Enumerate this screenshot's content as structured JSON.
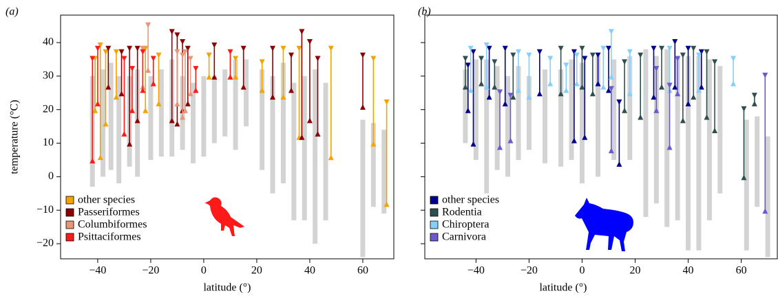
{
  "chart_data": [
    {
      "type": "range",
      "title": "(a)",
      "xlabel": "latitude (°)",
      "ylabel": "temperature (°C)",
      "xlim": [
        -54,
        71.7
      ],
      "ylim": [
        -24.5,
        48.2
      ],
      "xticks": [
        {
          "value": -40,
          "label": "−40"
        },
        {
          "value": -20,
          "label": "−20"
        },
        0,
        20,
        40,
        60
      ],
      "yticks": [
        {
          "value": -20,
          "label": "−20"
        },
        {
          "value": -10,
          "label": "−10"
        },
        0,
        10,
        20,
        30,
        40
      ],
      "show_ytick_labels": true,
      "thermal_ranges": {
        "color": "#d3d3d3",
        "x": [
          -42,
          -38,
          -35,
          -32,
          -28,
          -25,
          -20,
          -16,
          -12,
          -8,
          -4,
          0,
          4,
          8,
          12,
          16,
          22,
          26,
          30,
          34,
          38,
          42,
          46,
          60,
          64,
          68
        ],
        "low": [
          -3,
          0,
          2,
          -2,
          3,
          0,
          5,
          6,
          6,
          8,
          4,
          6,
          10,
          12,
          8,
          15,
          2,
          -5,
          -2,
          -13,
          -13,
          -20,
          -13,
          -24,
          -9,
          -11
        ],
        "high": [
          30,
          32,
          34,
          30,
          30,
          32,
          30,
          32,
          35,
          30,
          28,
          30,
          30,
          32,
          35,
          35,
          32,
          30,
          34,
          28,
          30,
          32,
          28,
          17,
          16,
          14
        ]
      },
      "series": [
        {
          "name": "other species",
          "color": "#f4a300",
          "x": [
            -41,
            -39,
            -37,
            -33,
            -22,
            -17,
            2,
            12,
            22,
            30,
            36,
            48,
            64,
            69
          ],
          "low": [
            20,
            6,
            16,
            24,
            20,
            22,
            30,
            30,
            26,
            24,
            12,
            6,
            10,
            -8
          ],
          "high": [
            35,
            39,
            37,
            37,
            38,
            36,
            36,
            35,
            34,
            38,
            38,
            38,
            35,
            22
          ]
        },
        {
          "name": "Passeriformes",
          "color": "#8b0000",
          "x": [
            -36,
            -31,
            -28,
            -25,
            -12,
            -10,
            -8,
            -6,
            4,
            15,
            26,
            33,
            37,
            40,
            43,
            60
          ],
          "low": [
            27,
            25,
            10,
            17,
            17,
            16,
            20,
            22,
            30,
            27,
            24,
            26,
            12,
            17,
            13,
            21
          ],
          "high": [
            38,
            37,
            38,
            38,
            43,
            42,
            40,
            38,
            39,
            38,
            38,
            36,
            43,
            40,
            35,
            36
          ]
        },
        {
          "name": "Columbiformes",
          "color": "#e8967a",
          "x": [
            -23,
            -21,
            -10,
            -8,
            -7,
            -5
          ],
          "low": [
            27,
            32,
            22,
            18,
            20,
            25
          ],
          "high": [
            38,
            45,
            37,
            36,
            37,
            35
          ]
        },
        {
          "name": "Psittaciformes",
          "color": "#ff1a1a",
          "x": [
            -42,
            -40,
            -30,
            -27,
            -23,
            -19,
            -3,
            10
          ],
          "low": [
            5,
            22,
            13,
            20,
            26,
            28,
            26,
            30
          ],
          "high": [
            35,
            38,
            35,
            32,
            37,
            35,
            32,
            37
          ]
        }
      ]
    },
    {
      "type": "range",
      "title": "(b)",
      "xlabel": "latitude (°)",
      "xlim": [
        -59.3,
        73.6
      ],
      "ylim": [
        -24.5,
        48.2
      ],
      "xticks": [
        {
          "value": -40,
          "label": "−40"
        },
        {
          "value": -20,
          "label": "−20"
        },
        0,
        20,
        40,
        60
      ],
      "yticks": [
        -20,
        -10,
        0,
        10,
        20,
        30,
        40
      ],
      "show_ytick_labels": false,
      "thermal_ranges": {
        "color": "#d3d3d3",
        "x": [
          -44,
          -40,
          -36,
          -32,
          -28,
          -24,
          -20,
          -14,
          -8,
          -4,
          0,
          6,
          12,
          18,
          24,
          28,
          32,
          36,
          40,
          44,
          48,
          52,
          62,
          66,
          70
        ],
        "low": [
          10,
          5,
          -5,
          2,
          0,
          5,
          8,
          4,
          3,
          5,
          -2,
          0,
          5,
          5,
          -12,
          -8,
          -15,
          -13,
          -22,
          -22,
          -13,
          -5,
          -22,
          -9,
          -24
        ],
        "high": [
          32,
          35,
          35,
          33,
          30,
          33,
          30,
          32,
          32,
          35,
          34,
          36,
          35,
          36,
          38,
          36,
          38,
          36,
          36,
          36,
          35,
          33,
          17,
          18,
          12
        ]
      },
      "series": [
        {
          "name": "other species",
          "color": "#00008b",
          "x": [
            -43,
            -41,
            -35,
            -29,
            -16,
            -3,
            1,
            6,
            10,
            14,
            27,
            35,
            40,
            45
          ],
          "low": [
            20,
            10,
            24,
            22,
            25,
            11,
            12,
            28,
            26,
            4,
            24,
            27,
            22,
            27
          ],
          "high": [
            33,
            37,
            38,
            38,
            37,
            37,
            35,
            36,
            38,
            22,
            38,
            40,
            38,
            37
          ]
        },
        {
          "name": "Rodentia",
          "color": "#2f4f4f",
          "x": [
            -44,
            -38,
            -33,
            -26,
            -8,
            0,
            4,
            16,
            22,
            30,
            38,
            42,
            47,
            50,
            61,
            65
          ],
          "low": [
            27,
            28,
            27,
            24,
            25,
            27,
            25,
            20,
            18,
            27,
            17,
            24,
            18,
            14,
            0,
            22
          ],
          "high": [
            35,
            35,
            34,
            36,
            38,
            38,
            36,
            34,
            36,
            38,
            36,
            38,
            37,
            34,
            20,
            24
          ]
        },
        {
          "name": "Chiroptera",
          "color": "#87cefa",
          "x": [
            -42,
            -36,
            -24,
            -20,
            -12,
            -6,
            -2,
            8,
            11,
            18,
            33,
            44,
            57
          ],
          "low": [
            26,
            27,
            26,
            24,
            28,
            26,
            28,
            27,
            30,
            25,
            26,
            26,
            28
          ],
          "high": [
            38,
            39,
            37,
            36,
            35,
            33,
            36,
            38,
            43,
            37,
            38,
            36,
            35
          ]
        },
        {
          "name": "Carnivora",
          "color": "#6a5acd",
          "x": [
            -31,
            -27,
            11,
            28,
            33,
            36,
            69
          ],
          "low": [
            9,
            11,
            8,
            20,
            9,
            25,
            -10
          ],
          "high": [
            25,
            24,
            26,
            32,
            27,
            35,
            30
          ]
        }
      ]
    }
  ]
}
